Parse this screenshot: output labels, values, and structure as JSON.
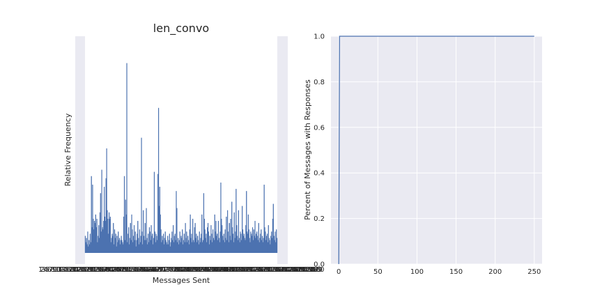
{
  "chart_data": [
    {
      "type": "bar",
      "title": "len_convo",
      "xlabel": "Messages Sent",
      "ylabel": "Relative Frequency",
      "grid": true,
      "background": "#eaeaf2",
      "bar_color": "#4c72b0",
      "values": [
        0.08,
        0.05,
        0.07,
        0.04,
        0.1,
        0.03,
        0.06,
        0.04,
        0.09,
        0.05,
        0.36,
        0.12,
        0.32,
        0.16,
        0.11,
        0.15,
        0.14,
        0.18,
        0.12,
        0.16,
        0.05,
        0.08,
        0.13,
        0.07,
        0.19,
        0.28,
        0.1,
        0.39,
        0.12,
        0.11,
        0.15,
        0.31,
        0.17,
        0.15,
        0.35,
        0.49,
        0.2,
        0.16,
        0.09,
        0.19,
        0.16,
        0.17,
        0.05,
        0.07,
        0.09,
        0.08,
        0.14,
        0.04,
        0.11,
        0.07,
        0.09,
        0.03,
        0.08,
        0.05,
        0.1,
        0.06,
        0.07,
        0.04,
        0.06,
        0.08,
        0.06,
        0.05,
        0.04,
        0.17,
        0.36,
        0.06,
        0.25,
        0.18,
        0.89,
        0.05,
        0.09,
        0.12,
        0.04,
        0.07,
        0.14,
        0.06,
        0.18,
        0.11,
        0.05,
        0.08,
        0.13,
        0.06,
        0.1,
        0.03,
        0.06,
        0.09,
        0.15,
        0.07,
        0.04,
        0.11,
        0.05,
        0.08,
        0.54,
        0.1,
        0.04,
        0.2,
        0.08,
        0.06,
        0.14,
        0.06,
        0.21,
        0.07,
        0.04,
        0.09,
        0.05,
        0.12,
        0.1,
        0.06,
        0.13,
        0.08,
        0.09,
        0.04,
        0.07,
        0.38,
        0.1,
        0.05,
        0.09,
        0.08,
        0.06,
        0.37,
        0.68,
        0.22,
        0.31,
        0.18,
        0.11,
        0.05,
        0.08,
        0.06,
        0.09,
        0.04,
        0.07,
        0.1,
        0.06,
        0.05,
        0.04,
        0.08,
        0.04,
        0.06,
        0.09,
        0.03,
        0.05,
        0.07,
        0.1,
        0.06,
        0.13,
        0.05,
        0.08,
        0.09,
        0.06,
        0.29,
        0.21,
        0.05,
        0.07,
        0.04,
        0.06,
        0.1,
        0.05,
        0.08,
        0.07,
        0.11,
        0.04,
        0.06,
        0.09,
        0.05,
        0.14,
        0.07,
        0.1,
        0.05,
        0.08,
        0.06,
        0.04,
        0.11,
        0.18,
        0.07,
        0.09,
        0.05,
        0.16,
        0.06,
        0.05,
        0.12,
        0.14,
        0.07,
        0.09,
        0.05,
        0.08,
        0.06,
        0.04,
        0.1,
        0.05,
        0.07,
        0.09,
        0.18,
        0.05,
        0.06,
        0.28,
        0.16,
        0.11,
        0.07,
        0.09,
        0.05,
        0.12,
        0.14,
        0.1,
        0.04,
        0.08,
        0.06,
        0.13,
        0.09,
        0.05,
        0.11,
        0.07,
        0.06,
        0.18,
        0.1,
        0.15,
        0.08,
        0.09,
        0.06,
        0.15,
        0.07,
        0.05,
        0.1,
        0.33,
        0.16,
        0.13,
        0.08,
        0.06,
        0.09,
        0.05,
        0.11,
        0.07,
        0.17,
        0.06,
        0.2,
        0.1,
        0.05,
        0.14,
        0.08,
        0.16,
        0.06,
        0.24,
        0.12,
        0.09,
        0.05,
        0.19,
        0.07,
        0.1,
        0.3,
        0.13,
        0.08,
        0.06,
        0.2,
        0.07,
        0.05,
        0.1,
        0.09,
        0.06,
        0.22,
        0.11,
        0.08,
        0.09,
        0.07,
        0.06,
        0.13,
        0.29,
        0.1,
        0.09,
        0.18,
        0.11,
        0.07,
        0.05,
        0.1,
        0.09,
        0.08,
        0.12,
        0.06,
        0.11,
        0.08,
        0.15,
        0.07,
        0.09,
        0.1,
        0.08,
        0.06,
        0.14,
        0.05,
        0.07,
        0.09,
        0.11,
        0.06,
        0.08,
        0.05,
        0.07,
        0.32,
        0.12,
        0.1,
        0.06,
        0.08,
        0.09,
        0.05,
        0.13,
        0.07,
        0.06,
        0.04,
        0.08,
        0.1,
        0.07,
        0.16,
        0.23,
        0.08,
        0.06,
        0.1,
        0.05,
        0.11,
        0.07
      ]
    },
    {
      "type": "line",
      "xlabel": "",
      "ylabel": "Percent of Messages with Responses",
      "xlim": [
        -10,
        260
      ],
      "ylim": [
        0.0,
        1.0
      ],
      "xticks": [
        "0",
        "50",
        "100",
        "150",
        "200",
        "250"
      ],
      "yticks": [
        "0.0",
        "0.2",
        "0.4",
        "0.6",
        "0.8",
        "1.0"
      ],
      "grid": true,
      "background": "#eaeaf2",
      "line_color": "#4c72b0",
      "x": [
        0,
        0.5,
        1,
        50,
        100,
        150,
        200,
        250
      ],
      "y": [
        0.0,
        0.5,
        1.0,
        1.0,
        1.0,
        1.0,
        1.0,
        1.0
      ]
    }
  ]
}
